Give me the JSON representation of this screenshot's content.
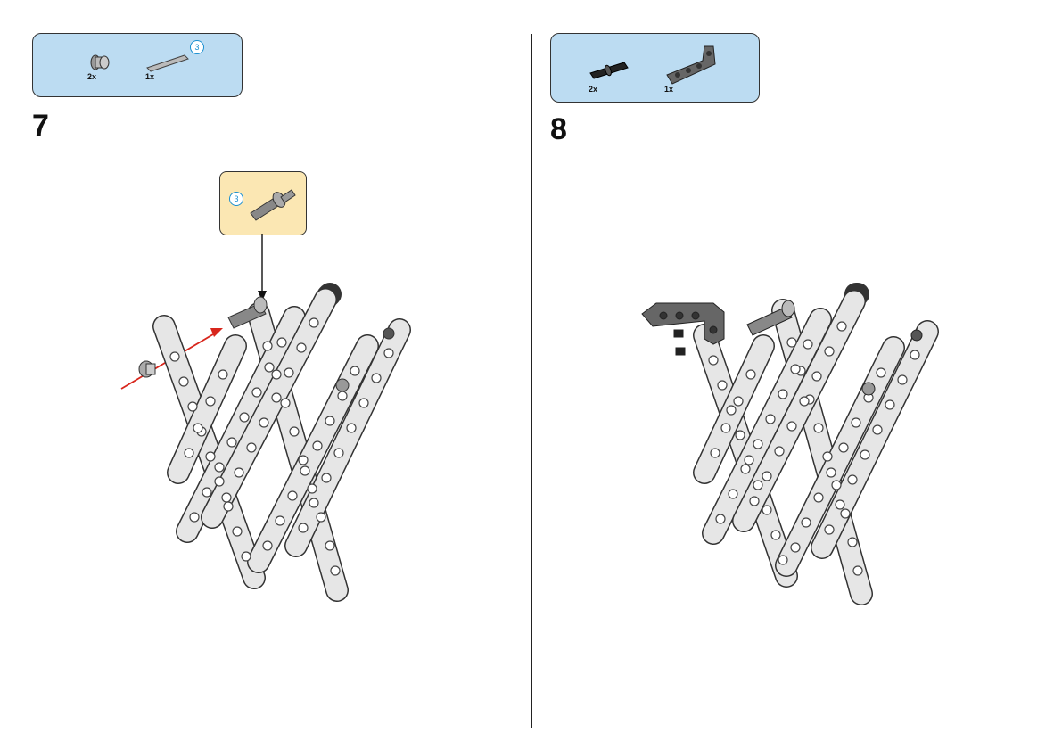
{
  "step7": {
    "number": "7",
    "parts": [
      {
        "icon": "bushing-icon",
        "qty": "2x"
      },
      {
        "icon": "axle-icon",
        "qty": "1x",
        "length_badge": "3"
      }
    ],
    "callout": {
      "icon": "axle-pin-icon",
      "length_badge": "3"
    }
  },
  "step8": {
    "number": "8",
    "parts": [
      {
        "icon": "friction-pin-icon",
        "qty": "2x"
      },
      {
        "icon": "angled-beam-icon",
        "qty": "1x"
      }
    ]
  },
  "colors": {
    "parts_box": "#bcdcf2",
    "callout_box": "#fbe7b3",
    "badge": "#1a8fd0",
    "arrow_red": "#d8261c",
    "beam_light": "#e6e6e6",
    "beam_dark": "#555555"
  }
}
